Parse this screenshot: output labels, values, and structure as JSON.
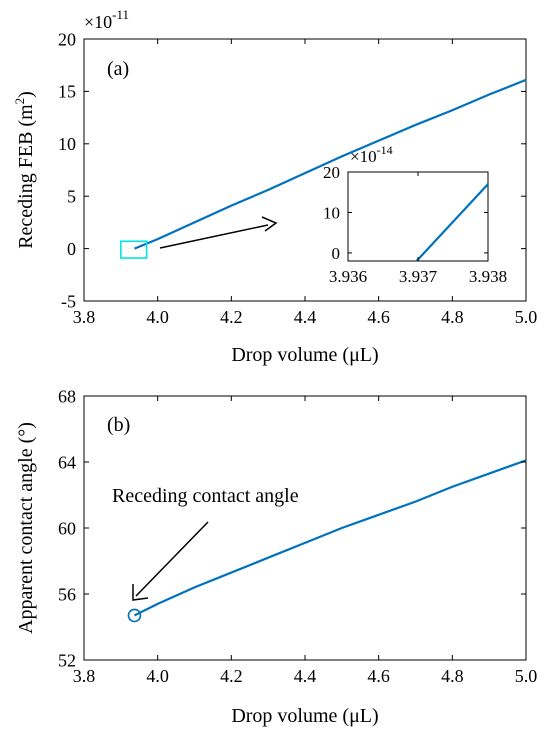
{
  "chart_data": [
    {
      "type": "line",
      "panel_label": "(a)",
      "xlabel": "Drop volume (μL)",
      "ylabel": "Receding FEB (m",
      "ylabel_sup": "2",
      "ylabel_close": ")",
      "exponent_base": "×10",
      "exponent_power": "-11",
      "xlim": [
        3.8,
        5.0
      ],
      "ylim": [
        -5,
        20
      ],
      "xticks": [
        "3.8",
        "4.0",
        "4.2",
        "4.4",
        "4.6",
        "4.8",
        "5.0"
      ],
      "yticks": [
        "-5",
        "0",
        "5",
        "10",
        "15",
        "20"
      ],
      "series": [
        {
          "color": "#0072BD",
          "x": [
            3.937,
            4.0,
            4.1,
            4.2,
            4.3,
            4.4,
            4.5,
            4.6,
            4.7,
            4.8,
            4.9,
            5.0
          ],
          "y": [
            0.0,
            0.9,
            2.5,
            4.1,
            5.6,
            7.2,
            8.8,
            10.3,
            11.8,
            13.2,
            14.7,
            16.1
          ]
        }
      ],
      "highlight_box": {
        "x": [
          3.9,
          3.97
        ],
        "y": [
          -0.9,
          0.7
        ],
        "color": "#00E5E5"
      },
      "inset": {
        "xlim": [
          3.936,
          3.938
        ],
        "ylim": [
          -2,
          20
        ],
        "xticks": [
          "3.936",
          "3.937",
          "3.938"
        ],
        "yticks": [
          "0",
          "10",
          "20"
        ],
        "exponent_base": "×10",
        "exponent_power": "-14",
        "series": [
          {
            "color": "#0072BD",
            "x": [
              3.93698,
              3.938
            ],
            "y": [
              -2,
              17
            ]
          }
        ]
      }
    },
    {
      "type": "line",
      "panel_label": "(b)",
      "xlabel": "Drop volume (μL)",
      "ylabel": "Apparent contact angle (°)",
      "xlim": [
        3.8,
        5.0
      ],
      "ylim": [
        52,
        68
      ],
      "xticks": [
        "3.8",
        "4.0",
        "4.2",
        "4.4",
        "4.6",
        "4.8",
        "5.0"
      ],
      "yticks": [
        "52",
        "56",
        "60",
        "64",
        "68"
      ],
      "series": [
        {
          "color": "#0072BD",
          "x": [
            3.937,
            4.0,
            4.1,
            4.2,
            4.3,
            4.4,
            4.5,
            4.6,
            4.7,
            4.8,
            4.9,
            5.0
          ],
          "y": [
            54.7,
            55.4,
            56.4,
            57.3,
            58.2,
            59.1,
            60.0,
            60.8,
            61.6,
            62.5,
            63.3,
            64.1
          ]
        }
      ],
      "marker": {
        "x": 3.937,
        "y": 54.7,
        "color": "#0072BD"
      },
      "annotation": "Receding contact angle"
    }
  ]
}
